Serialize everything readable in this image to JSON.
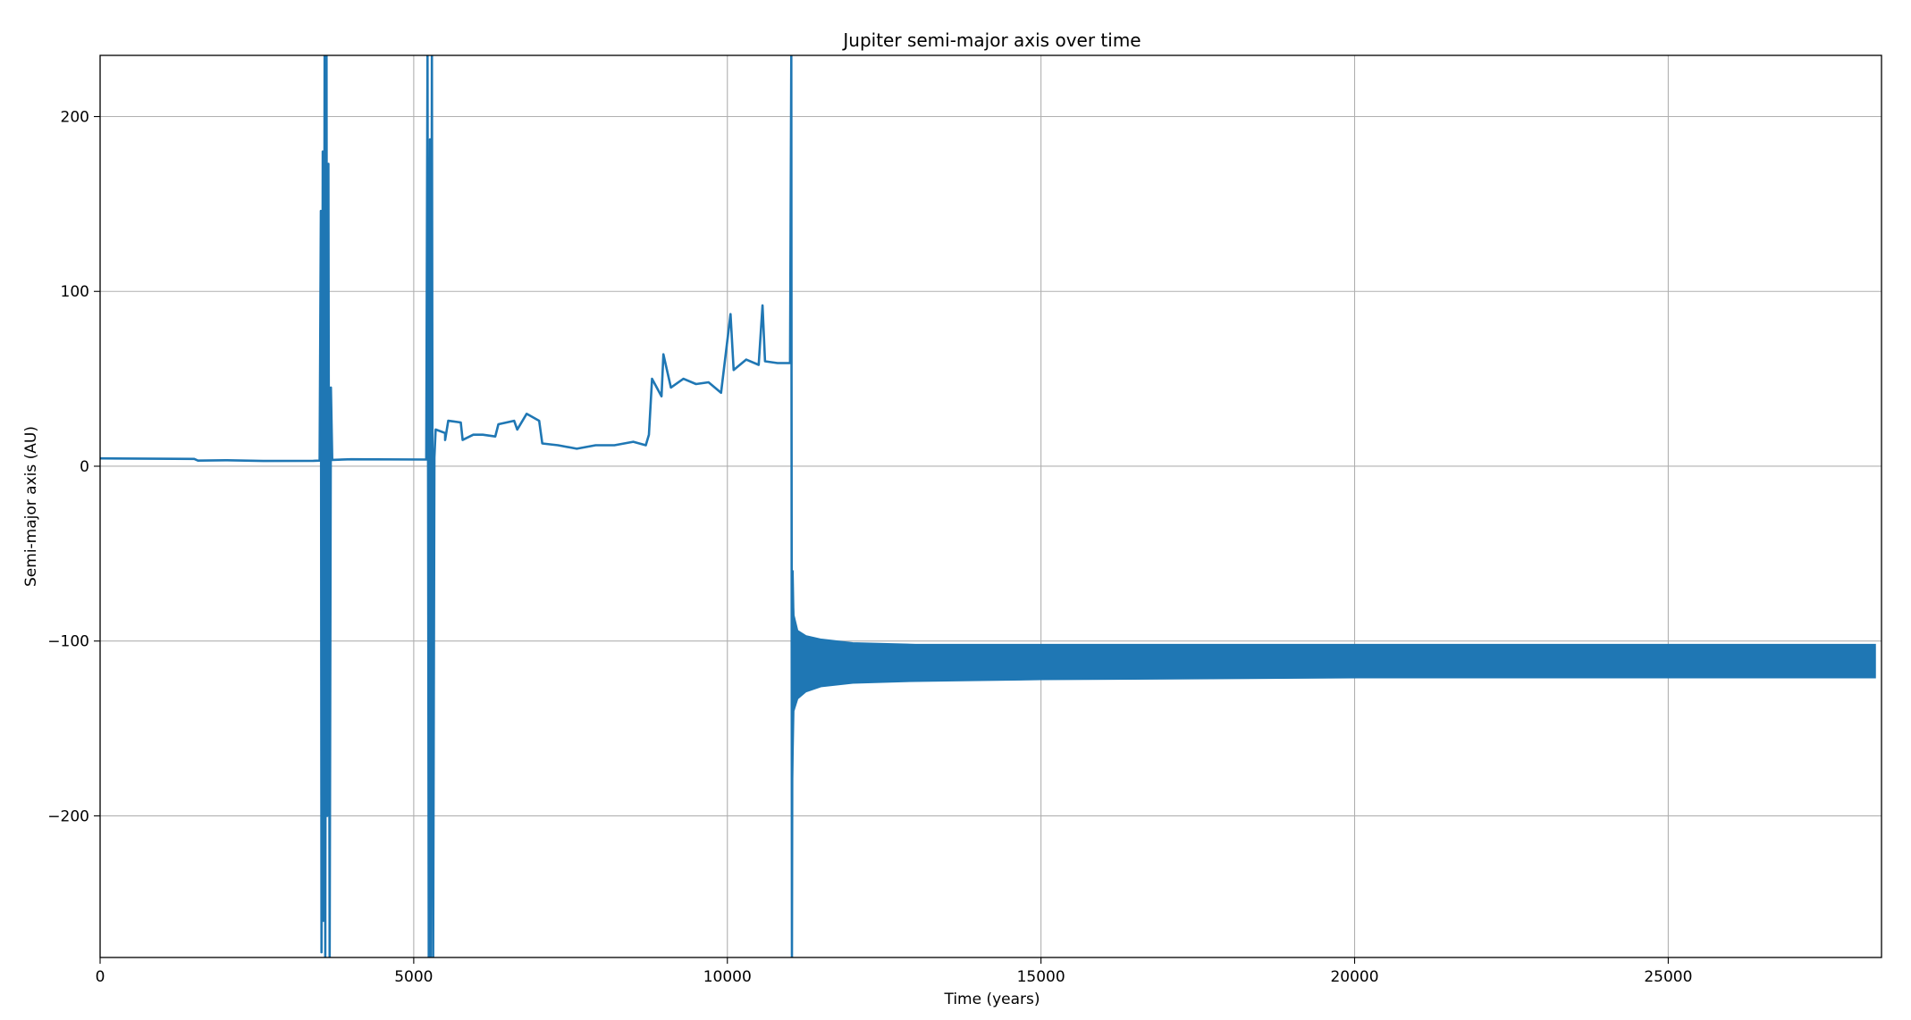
{
  "chart_data": {
    "type": "line",
    "title": "Jupiter semi-major axis over time",
    "xlabel": "Time (years)",
    "ylabel": "Semi-major axis (AU)",
    "xlim": [
      0,
      28400
    ],
    "ylim": [
      -281,
      235
    ],
    "xticks": [
      0,
      5000,
      10000,
      15000,
      20000,
      25000
    ],
    "xtick_labels": [
      "0",
      "5000",
      "10000",
      "15000",
      "20000",
      "25000"
    ],
    "yticks": [
      -200,
      -100,
      0,
      100,
      200
    ],
    "ytick_labels": [
      "−200",
      "−100",
      "0",
      "100",
      "200"
    ],
    "grid": true,
    "color": "#1f77b4",
    "series": [
      {
        "segments": [
          {
            "kind": "line",
            "points": [
              [
                0,
                4.5
              ],
              [
                1500,
                4.2
              ],
              [
                1560,
                3.2
              ],
              [
                2000,
                3.4
              ],
              [
                2600,
                3.0
              ],
              [
                3400,
                3.1
              ],
              [
                3500,
                3.2
              ],
              [
                3520,
                146
              ],
              [
                3530,
                -278
              ],
              [
                3550,
                180
              ],
              [
                3560,
                -260
              ],
              [
                3580,
                235
              ],
              [
                3590,
                -281
              ],
              [
                3610,
                235
              ],
              [
                3620,
                -200
              ],
              [
                3640,
                173
              ],
              [
                3660,
                -281
              ],
              [
                3680,
                45
              ],
              [
                3700,
                3.6
              ],
              [
                4000,
                4.0
              ],
              [
                5200,
                3.8
              ],
              [
                5220,
                235
              ],
              [
                5240,
                -281
              ],
              [
                5260,
                187
              ],
              [
                5270,
                -281
              ],
              [
                5290,
                235
              ],
              [
                5310,
                -281
              ],
              [
                5330,
                5
              ],
              [
                5350,
                21
              ],
              [
                5500,
                19
              ],
              [
                5500,
                15
              ],
              [
                5550,
                26
              ],
              [
                5750,
                25
              ],
              [
                5780,
                15
              ],
              [
                5950,
                18
              ],
              [
                6100,
                18
              ],
              [
                6300,
                17
              ],
              [
                6350,
                24
              ],
              [
                6600,
                26
              ],
              [
                6650,
                21
              ],
              [
                6800,
                30
              ],
              [
                7000,
                26
              ],
              [
                7050,
                13
              ],
              [
                7300,
                12
              ],
              [
                7600,
                10
              ],
              [
                7900,
                12
              ],
              [
                8200,
                12
              ],
              [
                8500,
                14
              ],
              [
                8700,
                12
              ],
              [
                8750,
                18
              ],
              [
                8800,
                50
              ],
              [
                8950,
                40
              ],
              [
                8980,
                64
              ],
              [
                9100,
                45
              ],
              [
                9300,
                50
              ],
              [
                9500,
                47
              ],
              [
                9700,
                48
              ],
              [
                9900,
                42
              ],
              [
                10050,
                87
              ],
              [
                10100,
                55
              ],
              [
                10300,
                61
              ],
              [
                10500,
                58
              ],
              [
                10560,
                92
              ],
              [
                10600,
                60
              ],
              [
                10800,
                59
              ],
              [
                11000,
                59
              ],
              [
                11020,
                235
              ],
              [
                11030,
                -281
              ],
              [
                11040,
                -60
              ],
              [
                11060,
                -100
              ]
            ]
          },
          {
            "kind": "band",
            "points": [
              [
                11030,
                -60,
                -200
              ],
              [
                11060,
                -85,
                -140
              ],
              [
                11120,
                -94,
                -133
              ],
              [
                11250,
                -97,
                -129
              ],
              [
                11500,
                -99,
                -126
              ],
              [
                12000,
                -101,
                -124
              ],
              [
                13000,
                -102,
                -123
              ],
              [
                15000,
                -102,
                -122
              ],
              [
                20000,
                -102,
                -121
              ],
              [
                25000,
                -102,
                -121
              ],
              [
                28300,
                -102,
                -121
              ]
            ]
          }
        ]
      }
    ]
  }
}
